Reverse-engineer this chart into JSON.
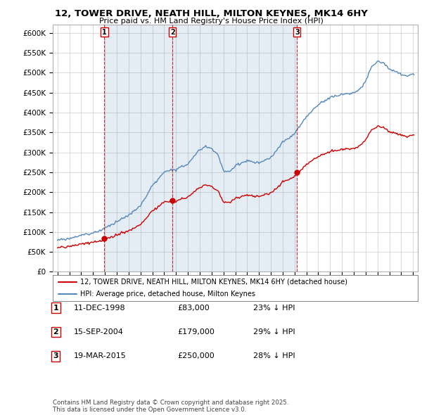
{
  "title": "12, TOWER DRIVE, NEATH HILL, MILTON KEYNES, MK14 6HY",
  "subtitle": "Price paid vs. HM Land Registry's House Price Index (HPI)",
  "ylim": [
    0,
    620000
  ],
  "yticks": [
    0,
    50000,
    100000,
    150000,
    200000,
    250000,
    300000,
    350000,
    400000,
    450000,
    500000,
    550000,
    600000
  ],
  "ytick_labels": [
    "£0",
    "£50K",
    "£100K",
    "£150K",
    "£200K",
    "£250K",
    "£300K",
    "£350K",
    "£400K",
    "£450K",
    "£500K",
    "£550K",
    "£600K"
  ],
  "legend_line1": "12, TOWER DRIVE, NEATH HILL, MILTON KEYNES, MK14 6HY (detached house)",
  "legend_line2": "HPI: Average price, detached house, Milton Keynes",
  "sale1_date_label": "11-DEC-1998",
  "sale1_price": 83000,
  "sale1_price_label": "£83,000",
  "sale1_pct": "23% ↓ HPI",
  "sale1_year": 1998.958,
  "sale2_date_label": "15-SEP-2004",
  "sale2_price": 179000,
  "sale2_price_label": "£179,000",
  "sale2_pct": "29% ↓ HPI",
  "sale2_year": 2004.708,
  "sale3_date_label": "19-MAR-2015",
  "sale3_price": 250000,
  "sale3_price_label": "£250,000",
  "sale3_pct": "28% ↓ HPI",
  "sale3_year": 2015.208,
  "footnote": "Contains HM Land Registry data © Crown copyright and database right 2025.\nThis data is licensed under the Open Government Licence v3.0.",
  "red_color": "#cc0000",
  "blue_color": "#5588bb",
  "blue_fill": "#ddeeff",
  "background_color": "#ffffff",
  "grid_color": "#cccccc"
}
